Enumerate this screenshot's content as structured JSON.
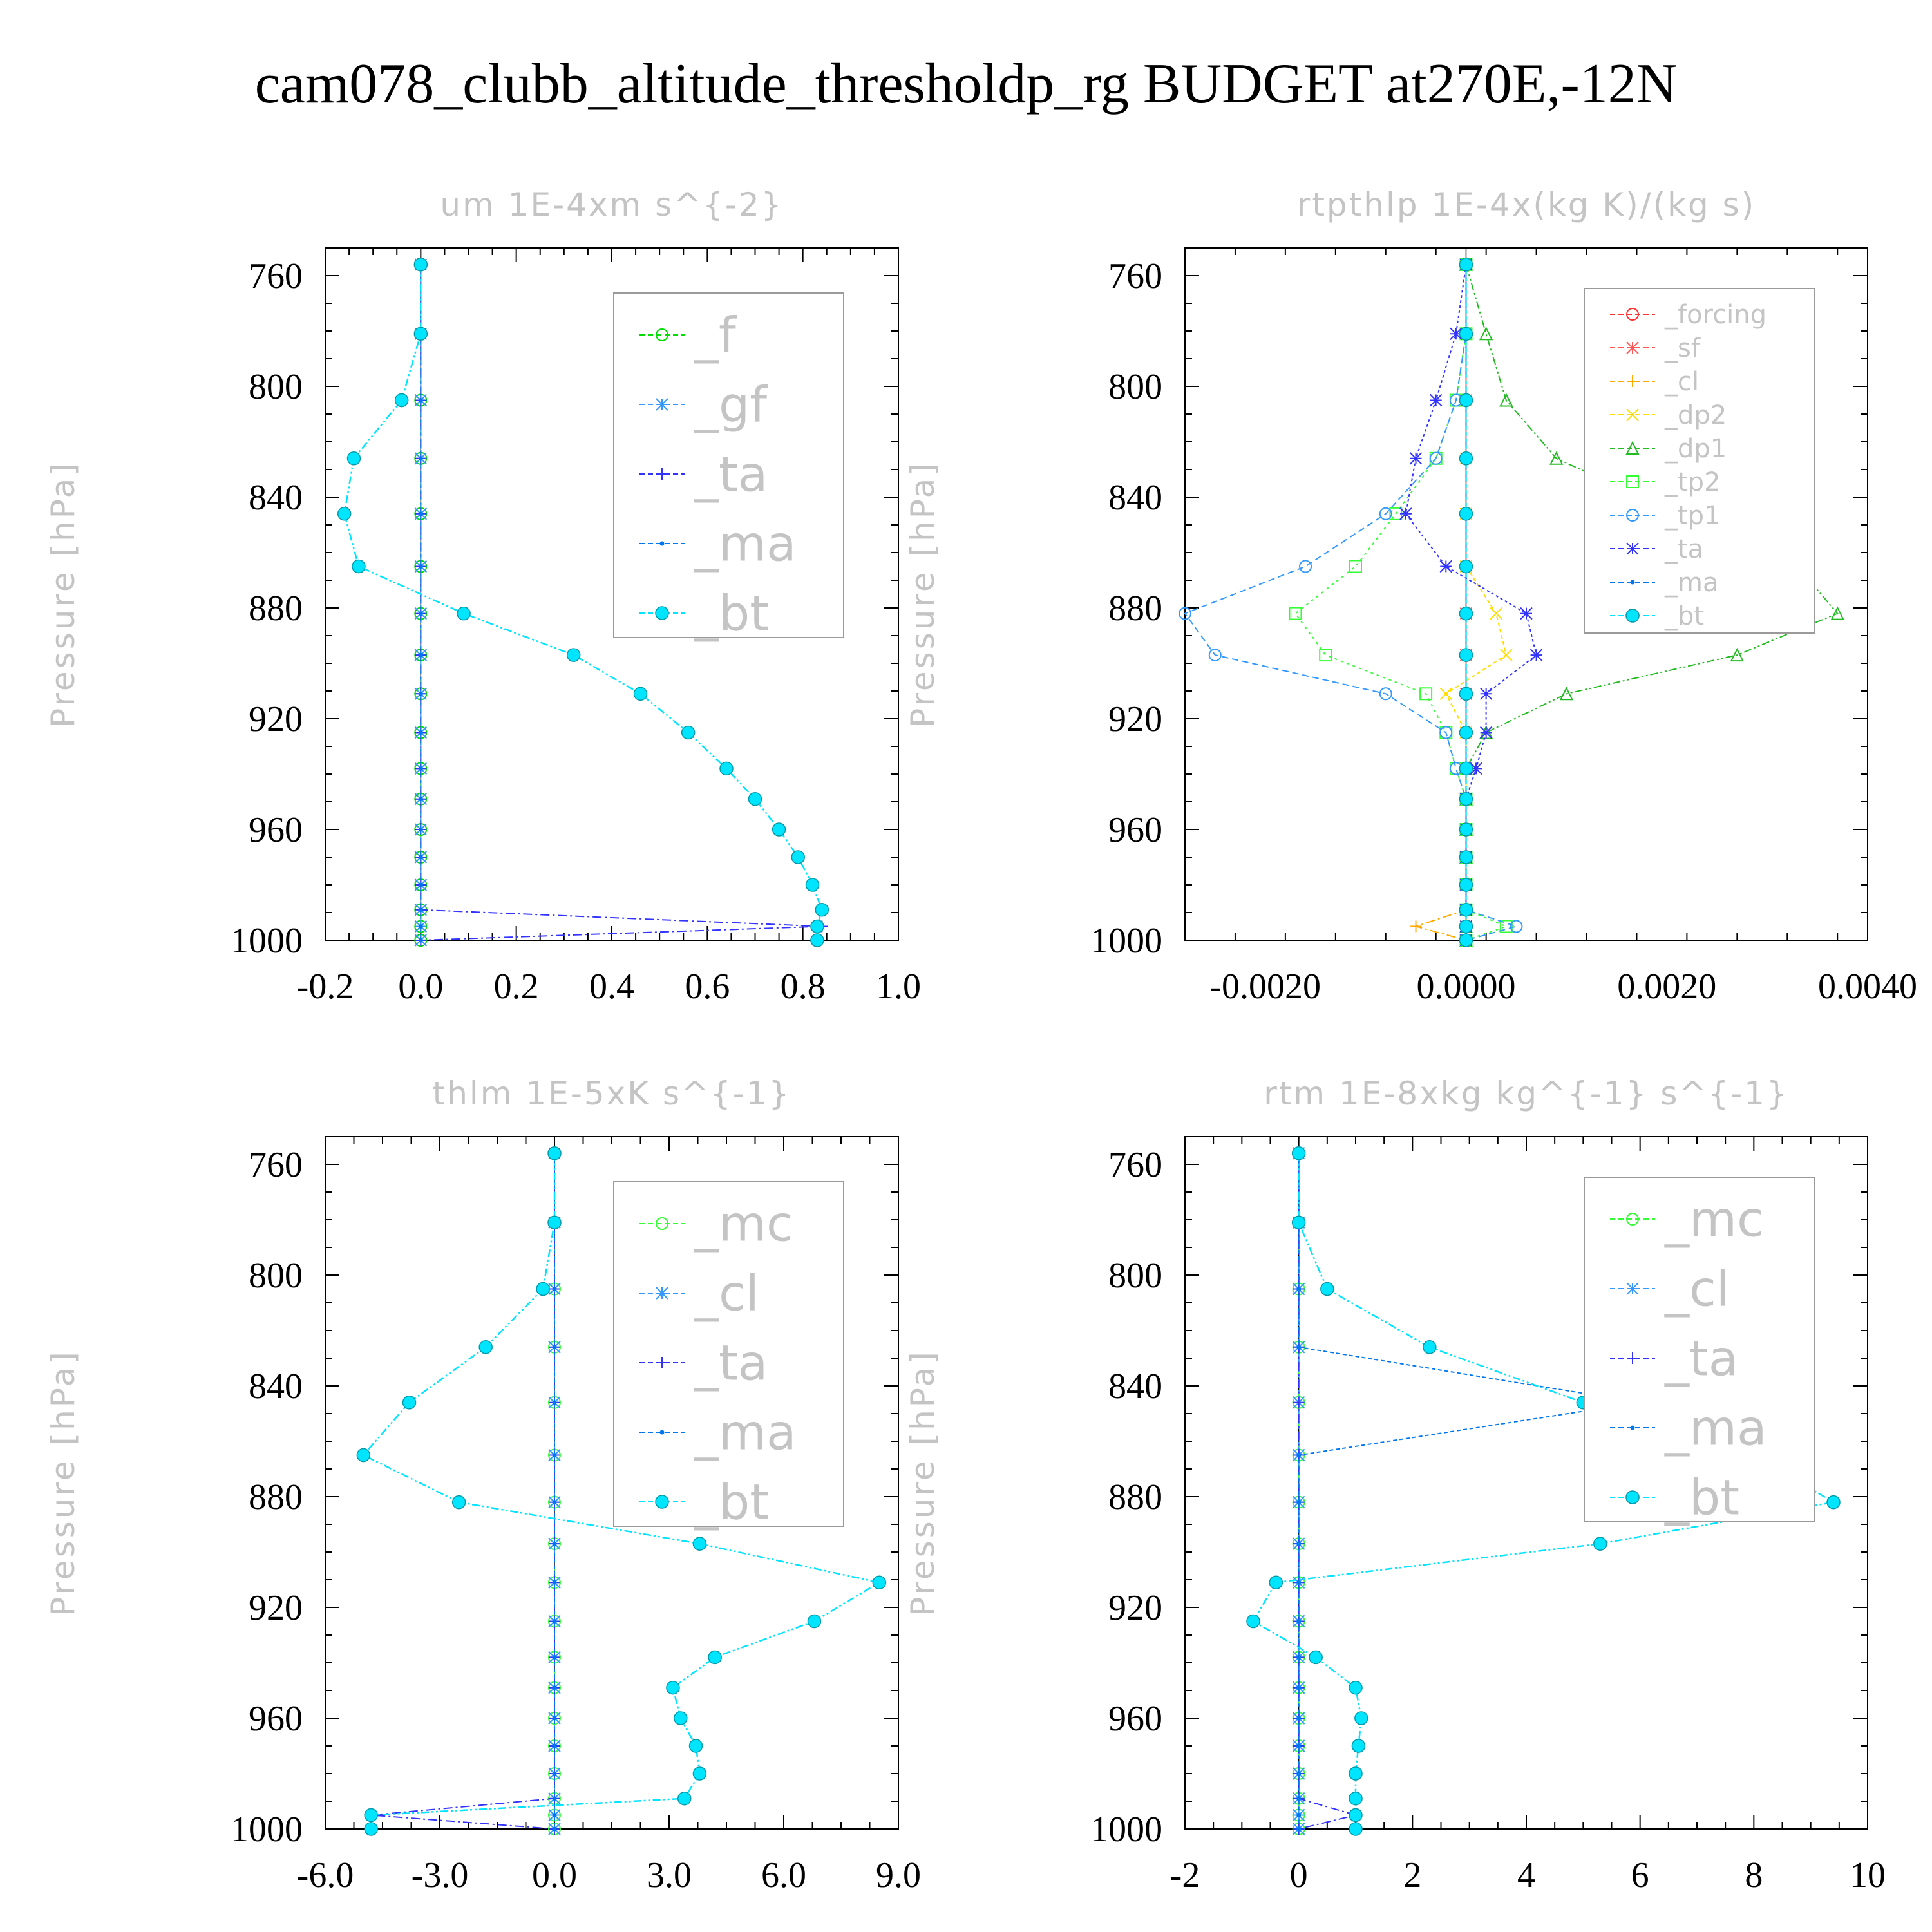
{
  "title": "cam078_clubb_altitude_thresholdp_rg  BUDGET at270E,-12N",
  "chart_data": [
    {
      "type": "line",
      "title": "um   1E-4xm s^{-2}",
      "ylabel": "Pressure [hPa]",
      "xlim": [
        -0.2,
        1.0
      ],
      "ylim": [
        750,
        1000
      ],
      "y_inverted": true,
      "xticks": [
        "-0.2",
        "0.0",
        "0.2",
        "0.4",
        "0.6",
        "0.8",
        "1.0"
      ],
      "xtick_values": [
        -0.2,
        0.0,
        0.2,
        0.4,
        0.6,
        0.8,
        1.0
      ],
      "yticks": [
        "760",
        "800",
        "840",
        "880",
        "920",
        "960",
        "1000"
      ],
      "ytick_values": [
        760,
        800,
        840,
        880,
        920,
        960,
        1000
      ],
      "grid": false,
      "legend_position": "top-right",
      "pressure": [
        756,
        781,
        805,
        826,
        846,
        865,
        882,
        897,
        911,
        925,
        938,
        949,
        960,
        970,
        980,
        989,
        995,
        1000
      ],
      "series": [
        {
          "name": "_f",
          "color": "#00dd00",
          "values": [
            0,
            0,
            0,
            0,
            0,
            0,
            0,
            0,
            0,
            0,
            0,
            0,
            0,
            0,
            0,
            0,
            0,
            0
          ]
        },
        {
          "name": "_gf",
          "color": "#3399ff",
          "values": [
            0,
            0,
            0,
            0,
            0,
            0,
            0,
            0,
            0,
            0,
            0,
            0,
            0,
            0,
            0,
            0,
            0,
            0
          ]
        },
        {
          "name": "_ta",
          "color": "#3333ff",
          "values": [
            0,
            0,
            0,
            0,
            0,
            0,
            0,
            0,
            0,
            0,
            0,
            0,
            0,
            0,
            0,
            0,
            0.84,
            0
          ]
        },
        {
          "name": "_ma",
          "color": "#0077ee",
          "values": [
            0,
            0,
            0,
            0,
            0,
            0,
            0,
            0,
            0,
            0,
            0,
            0,
            0,
            0,
            0,
            0,
            0,
            0
          ]
        },
        {
          "name": "_bt",
          "color": "#00e5ff",
          "values": [
            0,
            0,
            -0.04,
            -0.14,
            -0.16,
            -0.13,
            0.09,
            0.32,
            0.46,
            0.56,
            0.64,
            0.7,
            0.75,
            0.79,
            0.82,
            0.84,
            0.83,
            0.83
          ]
        }
      ]
    },
    {
      "type": "line",
      "title": "rtpthlp   1E-4x(kg K)/(kg s)",
      "ylabel": "Pressure [hPa]",
      "xlim": [
        -0.0028,
        0.004
      ],
      "ylim": [
        750,
        1000
      ],
      "y_inverted": true,
      "xticks": [
        "-0.0020",
        "0.0000",
        "0.0020",
        "0.0040"
      ],
      "xtick_values": [
        -0.002,
        0.0,
        0.002,
        0.004
      ],
      "yticks": [
        "760",
        "800",
        "840",
        "880",
        "920",
        "960",
        "1000"
      ],
      "ytick_values": [
        760,
        800,
        840,
        880,
        920,
        960,
        1000
      ],
      "grid": false,
      "legend_position": "top-right",
      "pressure": [
        756,
        781,
        805,
        826,
        846,
        865,
        882,
        897,
        911,
        925,
        938,
        949,
        960,
        970,
        980,
        989,
        995,
        1000
      ],
      "series": [
        {
          "name": "_forcing",
          "color": "#ff3333",
          "values": [
            0,
            0,
            0,
            0,
            0,
            0,
            0,
            0,
            0,
            0,
            0,
            0,
            0,
            0,
            0,
            0,
            0,
            0
          ]
        },
        {
          "name": "_sf",
          "color": "#ff5555",
          "values": [
            0,
            0,
            0,
            0,
            0,
            0,
            0,
            0,
            0,
            0,
            0,
            0,
            0,
            0,
            0,
            0,
            0,
            0
          ]
        },
        {
          "name": "_cl",
          "color": "#ffaa00",
          "values": [
            0,
            0,
            0,
            0,
            0,
            0,
            0,
            0,
            0,
            0,
            0,
            0,
            0,
            0,
            0,
            0,
            -0.0005,
            0
          ]
        },
        {
          "name": "_dp2",
          "color": "#ffdd00",
          "values": [
            0,
            0,
            0,
            0,
            0,
            0,
            0.0003,
            0.0004,
            -0.0002,
            0,
            0,
            0,
            0,
            0,
            0,
            0,
            0,
            0
          ]
        },
        {
          "name": "_dp1",
          "color": "#22bb22",
          "values": [
            0,
            0.0002,
            0.0004,
            0.0009,
            0.0021,
            0.0033,
            0.0037,
            0.0027,
            0.001,
            0.0002,
            0,
            0,
            0,
            0,
            0,
            0,
            0,
            0
          ]
        },
        {
          "name": "_tp2",
          "color": "#33ff33",
          "values": [
            0,
            0,
            -0.0001,
            -0.0003,
            -0.0007,
            -0.0011,
            -0.0017,
            -0.0014,
            -0.0004,
            -0.0002,
            -0.0001,
            0,
            0,
            0,
            0,
            0,
            0.0004,
            0
          ]
        },
        {
          "name": "_tp1",
          "color": "#3399ff",
          "values": [
            0,
            0,
            -0.0001,
            -0.0003,
            -0.0008,
            -0.0016,
            -0.0028,
            -0.0025,
            -0.0008,
            -0.0002,
            -0.0001,
            0,
            0,
            0,
            0,
            0,
            0.0005,
            0
          ]
        },
        {
          "name": "_ta",
          "color": "#3333ff",
          "values": [
            0,
            -0.0001,
            -0.0003,
            -0.0005,
            -0.0006,
            -0.0002,
            0.0006,
            0.0007,
            0.0002,
            0.0002,
            0.0001,
            0,
            0,
            0,
            0,
            0,
            0,
            0
          ]
        },
        {
          "name": "_ma",
          "color": "#0077ee",
          "values": [
            0,
            0,
            0,
            0,
            0,
            0,
            0,
            0,
            0,
            0,
            0,
            0,
            0,
            0,
            0,
            0,
            0,
            0
          ]
        },
        {
          "name": "_bt",
          "color": "#00e5ff",
          "values": [
            0,
            0,
            0,
            0,
            0,
            0,
            0,
            0,
            0,
            0,
            0,
            0,
            0,
            0,
            0,
            0,
            0,
            0
          ]
        }
      ]
    },
    {
      "type": "line",
      "title": "thlm   1E-5xK s^{-1}",
      "ylabel": "Pressure [hPa]",
      "xlim": [
        -6.0,
        9.0
      ],
      "ylim": [
        750,
        1000
      ],
      "y_inverted": true,
      "xticks": [
        "-6.0",
        "-3.0",
        "0.0",
        "3.0",
        "6.0",
        "9.0"
      ],
      "xtick_values": [
        -6,
        -3,
        0,
        3,
        6,
        9
      ],
      "yticks": [
        "760",
        "800",
        "840",
        "880",
        "920",
        "960",
        "1000"
      ],
      "ytick_values": [
        760,
        800,
        840,
        880,
        920,
        960,
        1000
      ],
      "grid": false,
      "legend_position": "top-right",
      "pressure": [
        756,
        781,
        805,
        826,
        846,
        865,
        882,
        897,
        911,
        925,
        938,
        949,
        960,
        970,
        980,
        989,
        995,
        1000
      ],
      "series": [
        {
          "name": "_mc",
          "color": "#33ff33",
          "values": [
            0,
            0,
            0,
            0,
            0,
            0,
            0,
            0,
            0,
            0,
            0,
            0,
            0,
            0,
            0,
            0,
            0,
            0
          ]
        },
        {
          "name": "_cl",
          "color": "#3399ff",
          "values": [
            0,
            0,
            0,
            0,
            0,
            0,
            0,
            0,
            0,
            0,
            0,
            0,
            0,
            0,
            0,
            0,
            0,
            0
          ]
        },
        {
          "name": "_ta",
          "color": "#3333ff",
          "values": [
            0,
            0,
            0,
            0,
            0,
            0,
            0,
            0,
            0,
            0,
            0,
            0,
            0,
            0,
            0,
            0,
            -4.8,
            0
          ]
        },
        {
          "name": "_ma",
          "color": "#0077ee",
          "values": [
            0,
            0,
            0,
            0,
            0,
            0,
            0,
            0,
            0,
            0,
            0,
            0,
            0,
            0,
            0,
            0,
            0,
            0
          ]
        },
        {
          "name": "_bt",
          "color": "#00e5ff",
          "values": [
            0,
            0,
            -0.3,
            -1.8,
            -3.8,
            -5.0,
            -2.5,
            3.8,
            8.5,
            6.8,
            4.2,
            3.1,
            3.3,
            3.7,
            3.8,
            3.4,
            -4.8,
            -4.8
          ]
        }
      ]
    },
    {
      "type": "line",
      "title": "rtm   1E-8xkg kg^{-1} s^{-1}",
      "ylabel": "Pressure [hPa]",
      "xlim": [
        -2,
        10
      ],
      "ylim": [
        750,
        1000
      ],
      "y_inverted": true,
      "xticks": [
        "-2",
        "0",
        "2",
        "4",
        "6",
        "8",
        "10"
      ],
      "xtick_values": [
        -2,
        0,
        2,
        4,
        6,
        8,
        10
      ],
      "yticks": [
        "760",
        "800",
        "840",
        "880",
        "920",
        "960",
        "1000"
      ],
      "ytick_values": [
        760,
        800,
        840,
        880,
        920,
        960,
        1000
      ],
      "grid": false,
      "legend_position": "top-right",
      "pressure": [
        756,
        781,
        805,
        826,
        846,
        865,
        882,
        897,
        911,
        925,
        938,
        949,
        960,
        970,
        980,
        989,
        995,
        1000
      ],
      "series": [
        {
          "name": "_mc",
          "color": "#33ff33",
          "values": [
            0,
            0,
            0,
            0,
            0,
            0,
            0,
            0,
            0,
            0,
            0,
            0,
            0,
            0,
            0,
            0,
            0,
            0
          ]
        },
        {
          "name": "_cl",
          "color": "#3399ff",
          "values": [
            0,
            0,
            0,
            0,
            0,
            0,
            0,
            0,
            0,
            0,
            0,
            0,
            0,
            0,
            0,
            0,
            0,
            0
          ]
        },
        {
          "name": "_ta",
          "color": "#3333ff",
          "values": [
            0,
            0,
            0,
            0,
            0,
            0,
            0,
            0,
            0,
            0,
            0,
            0,
            0,
            0,
            0,
            0,
            1.0,
            0
          ]
        },
        {
          "name": "_ma",
          "color": "#0077ee",
          "values": [
            0,
            0,
            0,
            0,
            6.0,
            0,
            0,
            0,
            0,
            0,
            0,
            0,
            0,
            0,
            0,
            0,
            0,
            0
          ]
        },
        {
          "name": "_bt",
          "color": "#00e5ff",
          "values": [
            0,
            0,
            0.5,
            2.3,
            5.0,
            8.0,
            9.4,
            5.3,
            -0.4,
            -0.8,
            0.3,
            1.0,
            1.1,
            1.05,
            1.0,
            1.0,
            1.0,
            1.0
          ]
        }
      ]
    }
  ]
}
